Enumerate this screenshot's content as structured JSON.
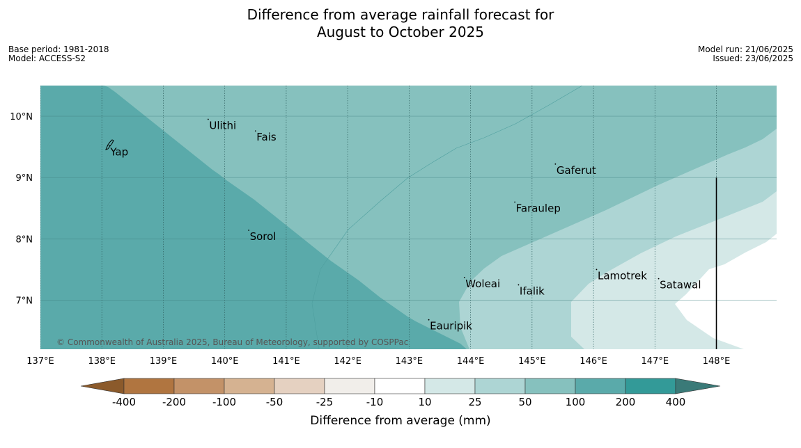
{
  "title": {
    "line1": "Difference from average rainfall forecast for",
    "line2": "August to October 2025"
  },
  "meta_left": {
    "base_period": "Base period: 1981-2018",
    "model": "Model: ACCESS-S2"
  },
  "meta_right": {
    "model_run": "Model run: 21/06/2025",
    "issued": "Issued: 23/06/2025"
  },
  "map": {
    "extent": {
      "lon": [
        137.0,
        148.98
      ],
      "lat": [
        6.2,
        10.5
      ]
    },
    "lat_ticks": [
      {
        "value": 10,
        "label": "10°N"
      },
      {
        "value": 9,
        "label": "9°N"
      },
      {
        "value": 8,
        "label": "8°N"
      },
      {
        "value": 7,
        "label": "7°N"
      }
    ],
    "lon_ticks": [
      {
        "value": 137,
        "label": "137°E"
      },
      {
        "value": 138,
        "label": "138°E"
      },
      {
        "value": 139,
        "label": "139°E"
      },
      {
        "value": 140,
        "label": "140°E"
      },
      {
        "value": 141,
        "label": "141°E"
      },
      {
        "value": 142,
        "label": "142°E"
      },
      {
        "value": 143,
        "label": "143°E"
      },
      {
        "value": 144,
        "label": "144°E"
      },
      {
        "value": 145,
        "label": "145°E"
      },
      {
        "value": 146,
        "label": "146°E"
      },
      {
        "value": 147,
        "label": "147°E"
      },
      {
        "value": 148,
        "label": "148°E"
      }
    ],
    "places": [
      {
        "name": "Ulithi",
        "lon": 139.73,
        "lat": 9.95
      },
      {
        "name": "Fais",
        "lon": 140.5,
        "lat": 9.76
      },
      {
        "name": "Yap",
        "lon": 138.12,
        "lat": 9.52
      },
      {
        "name": "Gaferut",
        "lon": 145.38,
        "lat": 9.22
      },
      {
        "name": "Faraulep",
        "lon": 144.72,
        "lat": 8.6
      },
      {
        "name": "Sorol",
        "lon": 140.39,
        "lat": 8.14
      },
      {
        "name": "Lamotrek",
        "lon": 146.05,
        "lat": 7.5
      },
      {
        "name": "Woleai",
        "lon": 143.9,
        "lat": 7.37
      },
      {
        "name": "Ifalik",
        "lon": 144.78,
        "lat": 7.25
      },
      {
        "name": "Satawal",
        "lon": 147.06,
        "lat": 7.35
      },
      {
        "name": "Eauripik",
        "lon": 143.32,
        "lat": 6.68
      }
    ],
    "boundary_line": {
      "lon": 148.0,
      "lat_range": [
        6.2,
        9.0
      ]
    },
    "copyright": "© Commonwealth of Australia 2025, Bureau of Meteorology, supported by COSPPac",
    "zone_colors": {
      "100-200": "#5aaaaa",
      "50-100": "#86c1be",
      "25-50": "#add5d4",
      "10-25": "#d4e8e7",
      "-10-10": "#ffffff"
    }
  },
  "colorbar": {
    "title": "Difference from average (mm)",
    "ticks": [
      "-400",
      "-200",
      "-100",
      "-50",
      "-25",
      "-10",
      "10",
      "25",
      "50",
      "100",
      "200",
      "400"
    ],
    "colors": [
      "#8b5a2b",
      "#b07540",
      "#c39268",
      "#d5b291",
      "#e5d1c1",
      "#f1eeea",
      "#ffffff",
      "#d4e8e7",
      "#add5d4",
      "#86c1be",
      "#5aaaaa",
      "#339a98",
      "#3a7a78"
    ]
  }
}
